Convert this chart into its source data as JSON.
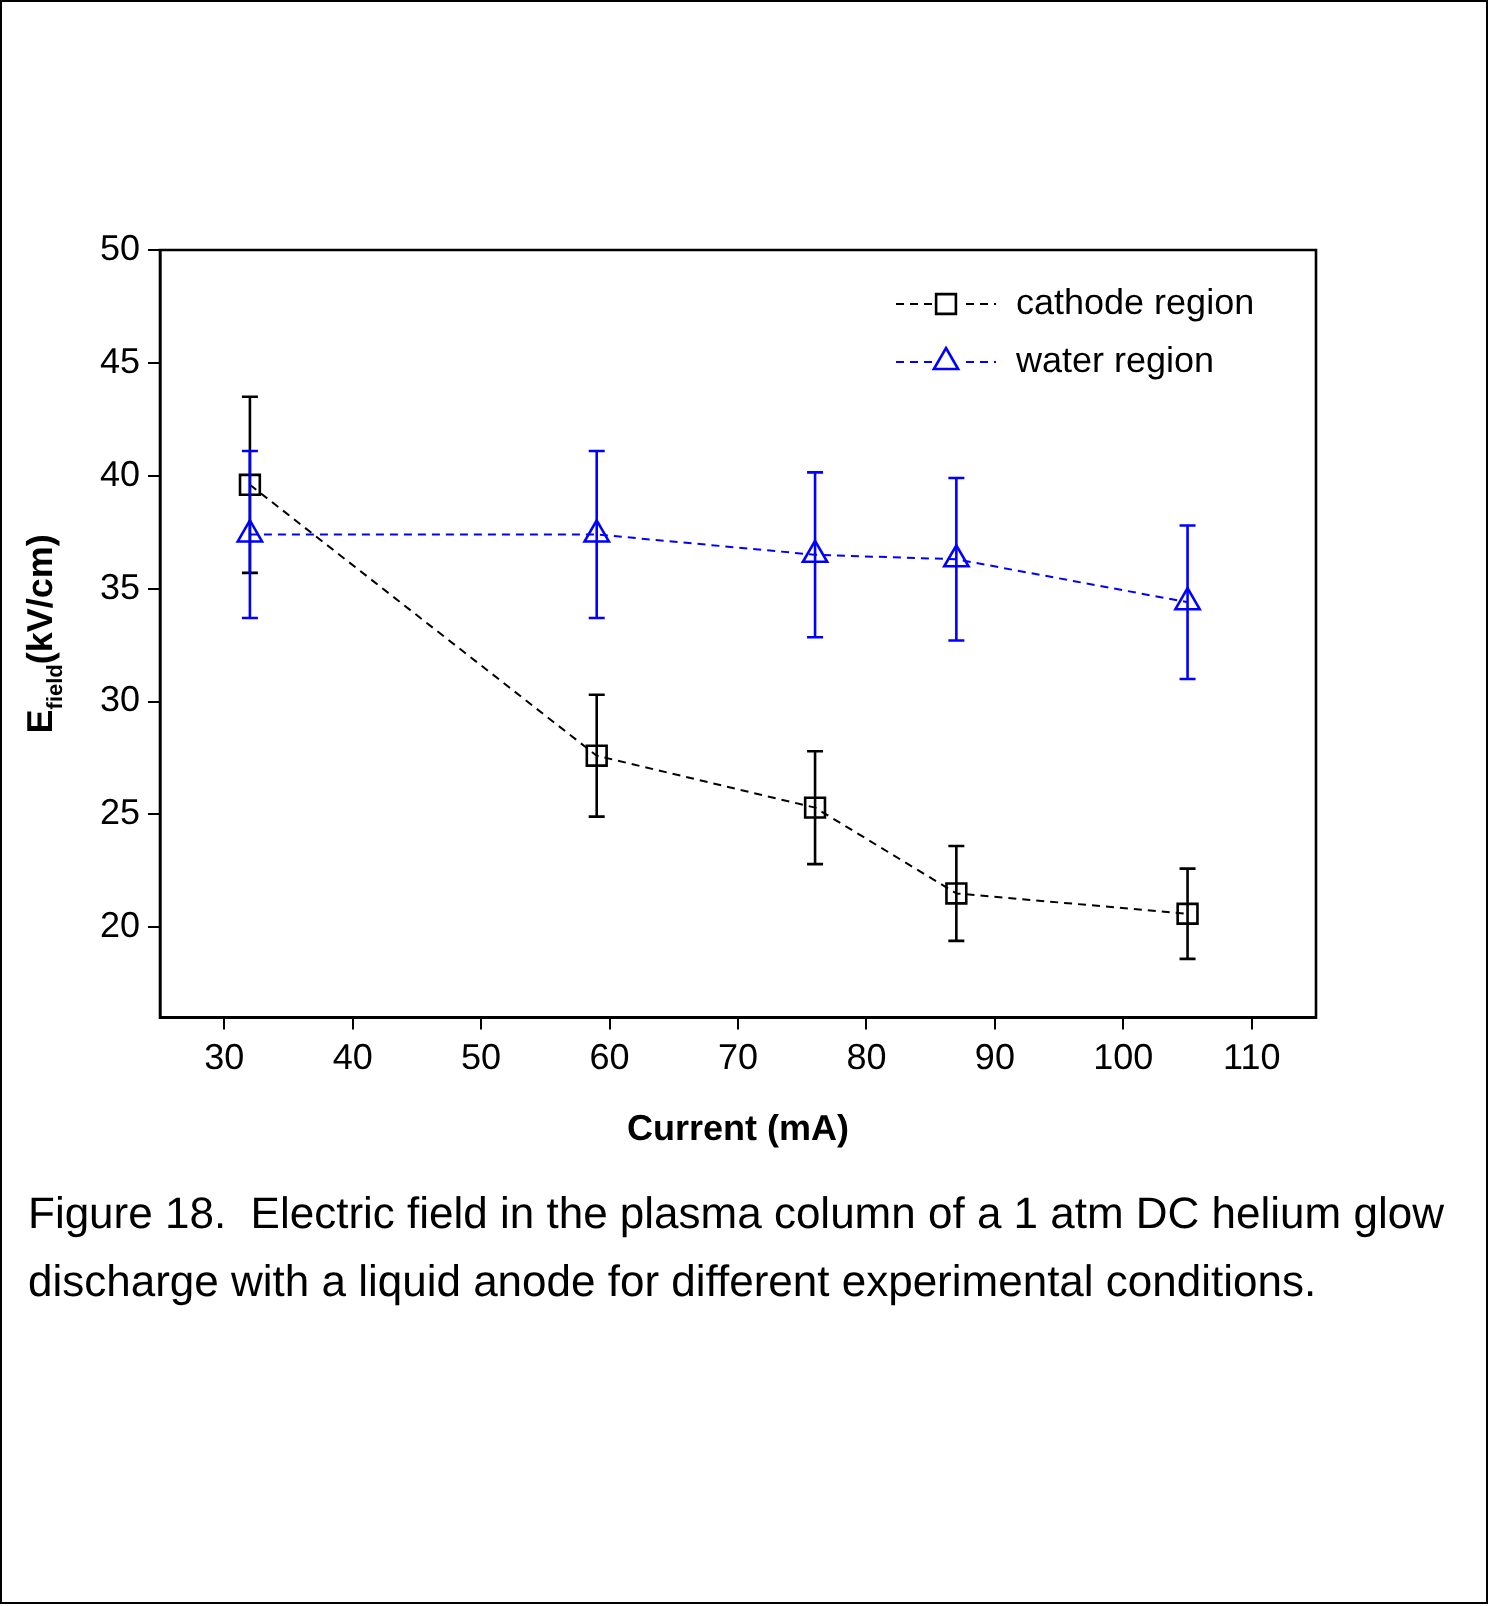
{
  "chart_data": {
    "type": "line",
    "xlabel": "Current (mA)",
    "ylabel": "E$_{field}$(kV/cm)",
    "x": [
      32,
      59,
      76,
      87,
      105
    ],
    "series": [
      {
        "name": "cathode region",
        "color": "#000000",
        "marker": "square",
        "values": [
          39.6,
          27.6,
          25.3,
          21.5,
          20.6
        ],
        "errors": [
          3.9,
          2.7,
          2.5,
          2.1,
          2.0
        ]
      },
      {
        "name": "water region",
        "color": "#0000ff",
        "marker": "triangle",
        "values": [
          37.4,
          37.4,
          36.5,
          36.3,
          34.4
        ],
        "errors": [
          3.7,
          3.7,
          3.65,
          3.6,
          3.4
        ]
      }
    ],
    "xlim": [
      25,
      115
    ],
    "xticks": [
      30,
      40,
      50,
      60,
      70,
      80,
      90,
      100,
      110
    ],
    "ylim": [
      16,
      50
    ],
    "yticks": [
      20,
      25,
      30,
      35,
      40,
      45,
      50
    ],
    "line_style": "dashed",
    "legend": "top right",
    "grid": false,
    "annotations": [
      "Figure 18.  Electric field in the plasma column of a 1 atm DC helium glow discharge with a liquid anode for different experimental conditions."
    ]
  }
}
